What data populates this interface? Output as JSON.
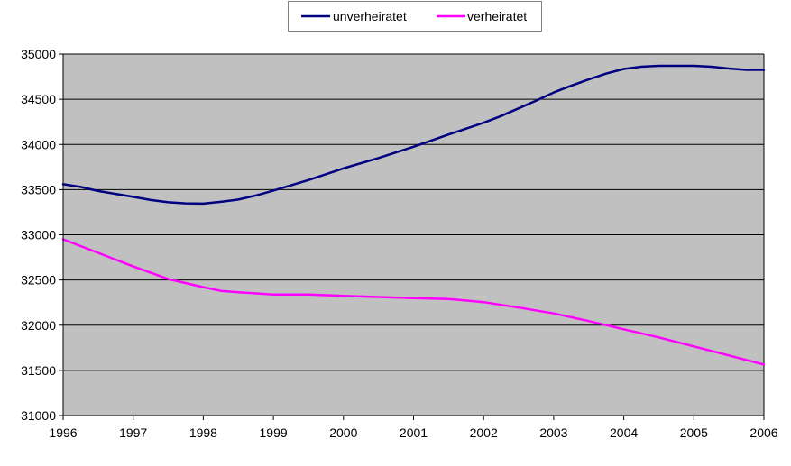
{
  "chart_data": {
    "type": "line",
    "x": [
      1996,
      1997,
      1998,
      1999,
      2000,
      2001,
      2002,
      2003,
      2004,
      2005,
      2006
    ],
    "x_tick_labels": [
      "1996",
      "1997",
      "1998",
      "1999",
      "2000",
      "2001",
      "2002",
      "2003",
      "2004",
      "2005",
      "2006"
    ],
    "y_tick_labels": [
      "31000",
      "31500",
      "32000",
      "32500",
      "33000",
      "33500",
      "34000",
      "34500",
      "35000"
    ],
    "y_ticks": [
      31000,
      31500,
      32000,
      32500,
      33000,
      33500,
      34000,
      34500,
      35000
    ],
    "ylim": [
      31000,
      35000
    ],
    "xlim": [
      1996,
      2006
    ],
    "grid": true,
    "legend_position": "top",
    "plot_background": "#c0c0c0",
    "series": [
      {
        "name": "unverheiratet",
        "color": "#000080",
        "x": [
          1996,
          1996.25,
          1996.5,
          1997,
          1997.25,
          1997.5,
          1997.75,
          1998,
          1998.25,
          1998.5,
          1998.75,
          1999,
          1999.5,
          2000,
          2000.5,
          2001,
          2001.5,
          2002,
          2002.25,
          2002.5,
          2002.75,
          2003,
          2003.25,
          2003.5,
          2003.75,
          2004,
          2004.25,
          2004.5,
          2005,
          2005.25,
          2005.5,
          2005.75,
          2006
        ],
        "values": [
          33560,
          33530,
          33485,
          33420,
          33385,
          33360,
          33348,
          33345,
          33365,
          33390,
          33435,
          33490,
          33605,
          33735,
          33850,
          33975,
          34110,
          34240,
          34315,
          34400,
          34485,
          34575,
          34650,
          34720,
          34785,
          34835,
          34860,
          34870,
          34870,
          34860,
          34840,
          34825,
          34825
        ]
      },
      {
        "name": "verheiratet",
        "color": "#ff00ff",
        "x": [
          1996,
          1996.5,
          1997,
          1997.5,
          1998,
          1998.25,
          1998.5,
          1999,
          1999.5,
          2000,
          2001,
          2001.5,
          2002,
          2002.5,
          2003,
          2003.5,
          2004,
          2004.5,
          2005,
          2005.5,
          2006
        ],
        "values": [
          32950,
          32800,
          32650,
          32510,
          32420,
          32380,
          32365,
          32340,
          32340,
          32325,
          32300,
          32290,
          32255,
          32195,
          32130,
          32045,
          31955,
          31865,
          31765,
          31665,
          31565
        ]
      }
    ]
  }
}
